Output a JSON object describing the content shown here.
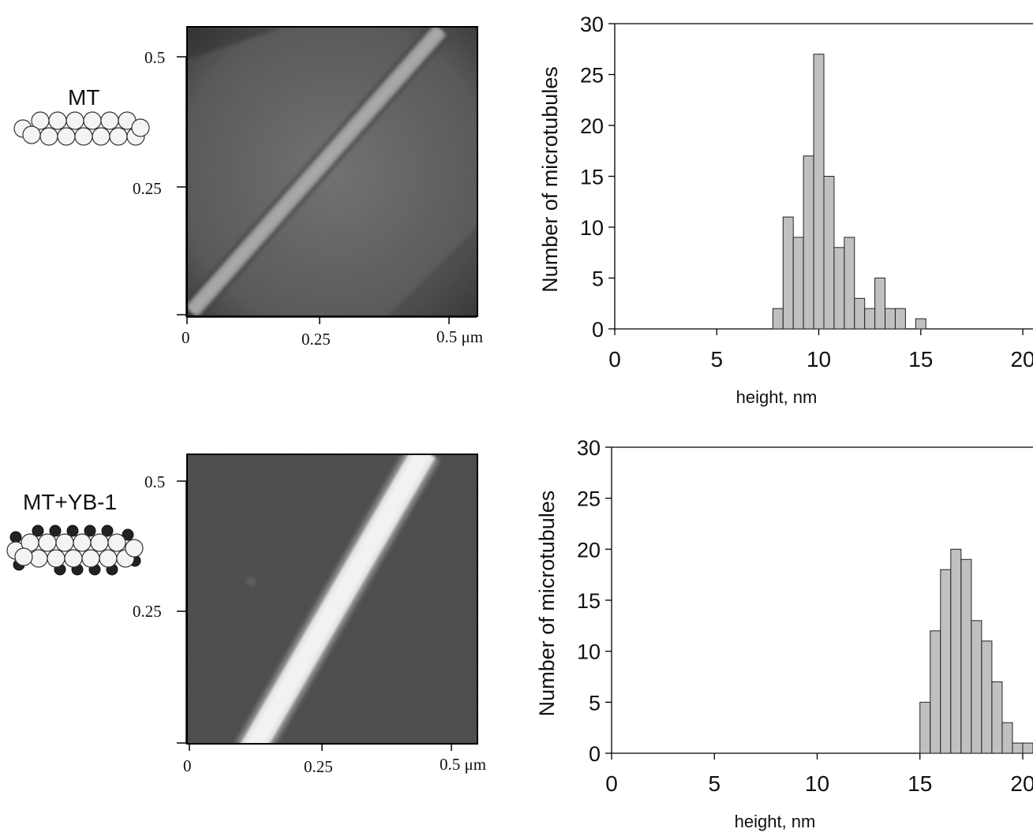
{
  "panels": [
    {
      "label": "MT",
      "afm": {
        "y_ticks": [
          "0.5",
          "0.25"
        ],
        "x_ticks": [
          "0",
          "0.25",
          "0.5 μm"
        ],
        "style": "dim-thin-filament"
      }
    },
    {
      "label": "MT+YB-1",
      "afm": {
        "y_ticks": [
          "0.5",
          "0.25"
        ],
        "x_ticks": [
          "0",
          "0.25",
          "0.5 μm"
        ],
        "style": "bright-thick-filament"
      }
    }
  ],
  "chart_data": [
    {
      "type": "bar",
      "title": "",
      "xlabel": "height, nm",
      "ylabel": "Number of microtubules",
      "xlim": [
        0,
        20.5
      ],
      "ylim": [
        0,
        30
      ],
      "x_ticks": [
        0,
        5,
        10,
        15,
        20
      ],
      "y_ticks": [
        0,
        5,
        10,
        15,
        20,
        25,
        30
      ],
      "bin_width": 0.5,
      "bin_starts": [
        7.75,
        8.25,
        8.75,
        9.25,
        9.75,
        10.25,
        10.75,
        11.25,
        11.75,
        12.25,
        12.75,
        13.25,
        13.75,
        14.25,
        14.75
      ],
      "values": [
        2,
        11,
        9,
        17,
        27,
        15,
        8,
        9,
        3,
        2,
        5,
        2,
        2,
        0,
        1
      ],
      "bar_color": "#c0c0c0"
    },
    {
      "type": "bar",
      "title": "",
      "xlabel": "height, nm",
      "ylabel": "Number of microtubules",
      "xlim": [
        0,
        20.5
      ],
      "ylim": [
        0,
        30
      ],
      "x_ticks": [
        0,
        5,
        10,
        15,
        20
      ],
      "y_ticks": [
        0,
        5,
        10,
        15,
        20,
        25,
        30
      ],
      "bin_width": 0.5,
      "bin_starts": [
        15.0,
        15.5,
        16.0,
        16.5,
        17.0,
        17.5,
        18.0,
        18.5,
        19.0,
        19.5,
        20.0
      ],
      "values": [
        5,
        12,
        18,
        20,
        19,
        13,
        11,
        7,
        3,
        1,
        1
      ],
      "bar_color": "#c0c0c0"
    }
  ]
}
